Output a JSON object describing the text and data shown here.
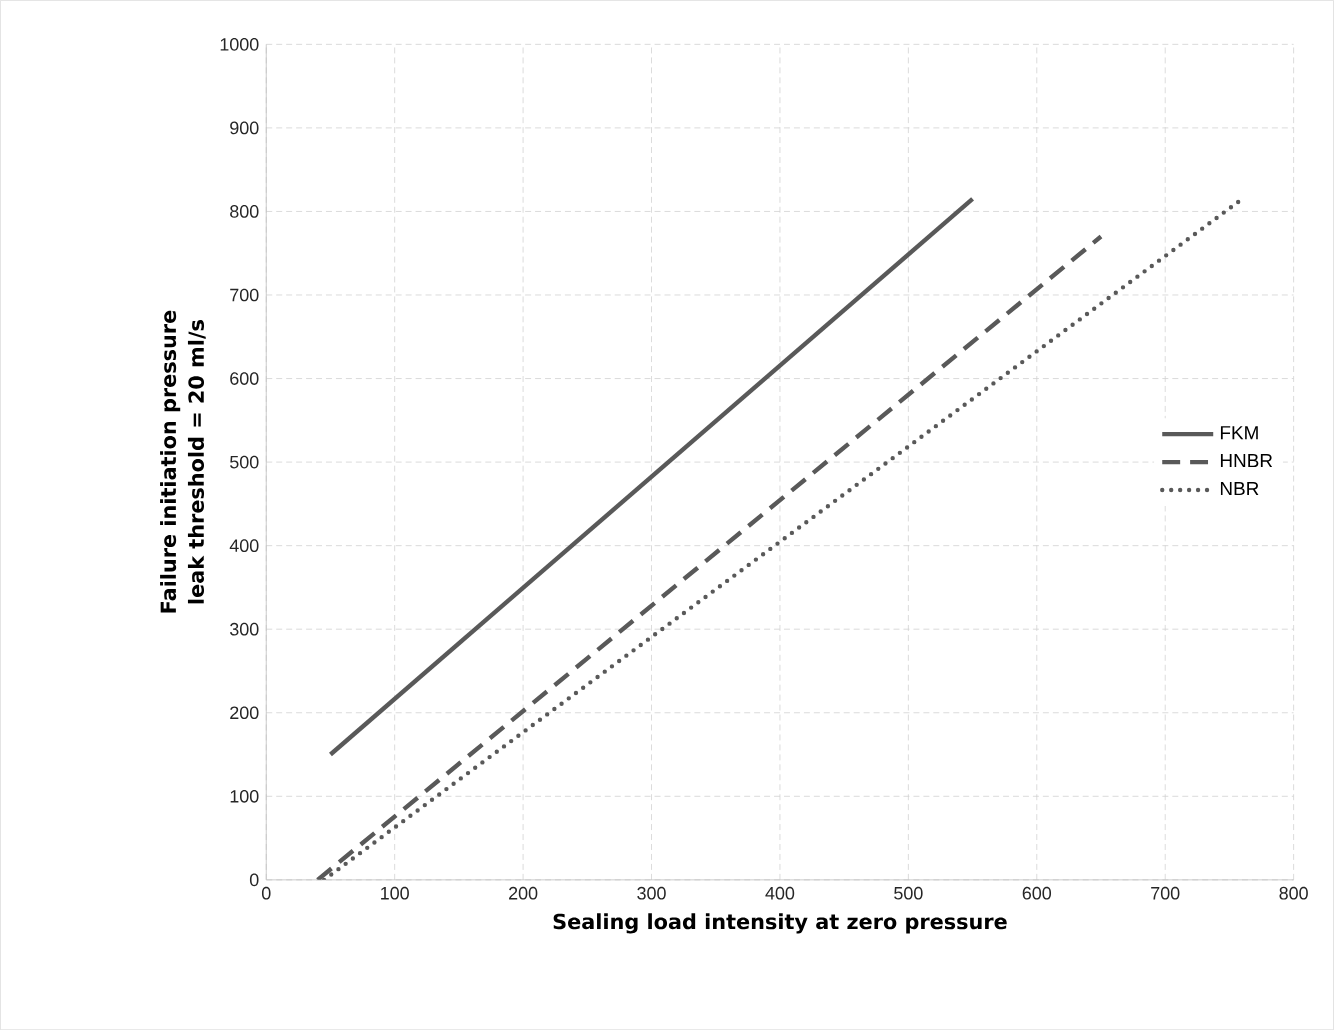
{
  "chart_data": {
    "type": "line",
    "xlabel": "Sealing load intensity at zero pressure",
    "ylabel": "Failure initiation pressure\nleak threshold = 20 ml/s",
    "xlim": [
      0,
      800
    ],
    "xticks": [
      0,
      100,
      200,
      300,
      400,
      500,
      600,
      700,
      800
    ],
    "ylim": [
      0,
      1000
    ],
    "yticks": [
      0,
      100,
      200,
      300,
      400,
      500,
      600,
      700,
      800,
      900,
      1000
    ],
    "grid": true,
    "legend": "right",
    "marker": "none",
    "series": [
      {
        "name": "FKM",
        "color": "#595959",
        "line_style": "solid",
        "x": [
          50,
          550
        ],
        "values": [
          150,
          815
        ]
      },
      {
        "name": "HNBR",
        "color": "#595959",
        "line_style": "dashed",
        "x": [
          40,
          650
        ],
        "values": [
          0,
          770
        ]
      },
      {
        "name": "NBR",
        "color": "#595959",
        "line_style": "dotted",
        "x": [
          45,
          760
        ],
        "values": [
          0,
          815
        ]
      }
    ]
  }
}
